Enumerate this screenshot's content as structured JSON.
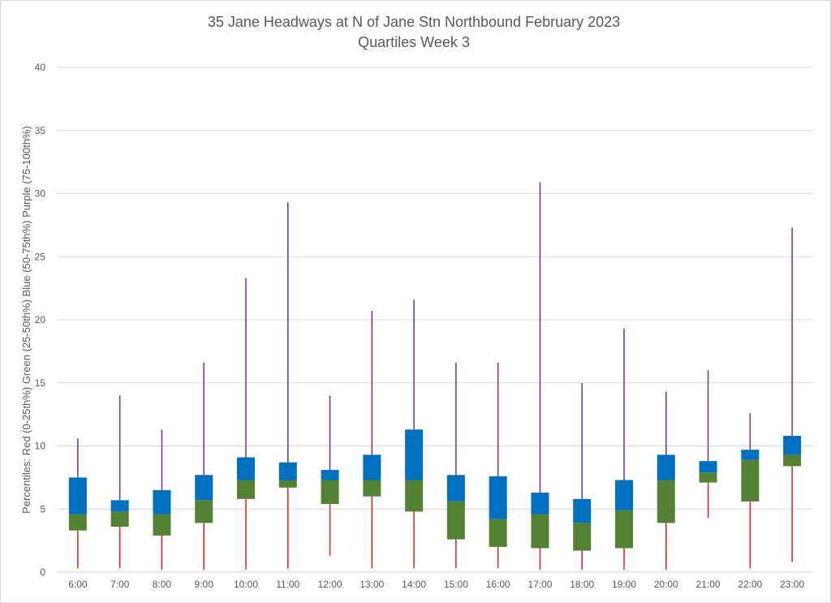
{
  "chart_data": {
    "type": "box",
    "title": "35 Jane Headways at N of Jane Stn Northbound February 2023",
    "subtitle": "Quartiles Week 3",
    "xlabel": "",
    "ylabel": "Percentiles:  Red (0-25th%)  Green (25-50th%)  Blue (50-75th%)  Purple (75-100th%)",
    "ylim": [
      0,
      40
    ],
    "yticks": [
      0,
      5,
      10,
      15,
      20,
      25,
      30,
      35,
      40
    ],
    "grid": true,
    "colors": {
      "min_whisker": "#e02020",
      "q1_to_median": "#548235",
      "median_to_q3": "#0070c0",
      "max_whisker": "#7030a0"
    },
    "categories": [
      "6:00",
      "7:00",
      "8:00",
      "9:00",
      "10:00",
      "11:00",
      "12:00",
      "13:00",
      "14:00",
      "15:00",
      "16:00",
      "17:00",
      "18:00",
      "19:00",
      "20:00",
      "21:00",
      "22:00",
      "23:00"
    ],
    "min": [
      0.3,
      0.3,
      0.2,
      0.2,
      0.2,
      0.3,
      1.3,
      0.3,
      0.3,
      0.3,
      0.3,
      0.2,
      0.2,
      0.2,
      0.2,
      4.3,
      0.3,
      0.8
    ],
    "q1": [
      3.3,
      3.6,
      2.9,
      3.9,
      5.8,
      6.7,
      5.4,
      6.0,
      4.8,
      2.6,
      2.0,
      1.9,
      1.7,
      1.9,
      3.9,
      7.1,
      5.6,
      8.4
    ],
    "median": [
      4.6,
      4.8,
      4.6,
      5.7,
      7.3,
      7.3,
      7.3,
      7.3,
      7.3,
      5.6,
      4.2,
      4.6,
      3.9,
      4.9,
      7.3,
      7.9,
      8.9,
      9.3
    ],
    "q3": [
      7.5,
      5.7,
      6.5,
      7.7,
      9.1,
      8.7,
      8.1,
      9.3,
      11.3,
      7.7,
      7.6,
      6.3,
      5.8,
      7.3,
      9.3,
      8.8,
      9.7,
      10.8
    ],
    "max": [
      10.6,
      14.0,
      11.3,
      16.6,
      23.3,
      29.3,
      14.0,
      20.7,
      21.6,
      16.6,
      16.6,
      30.9,
      15.0,
      19.3,
      14.3,
      16.0,
      12.6,
      27.3
    ]
  }
}
